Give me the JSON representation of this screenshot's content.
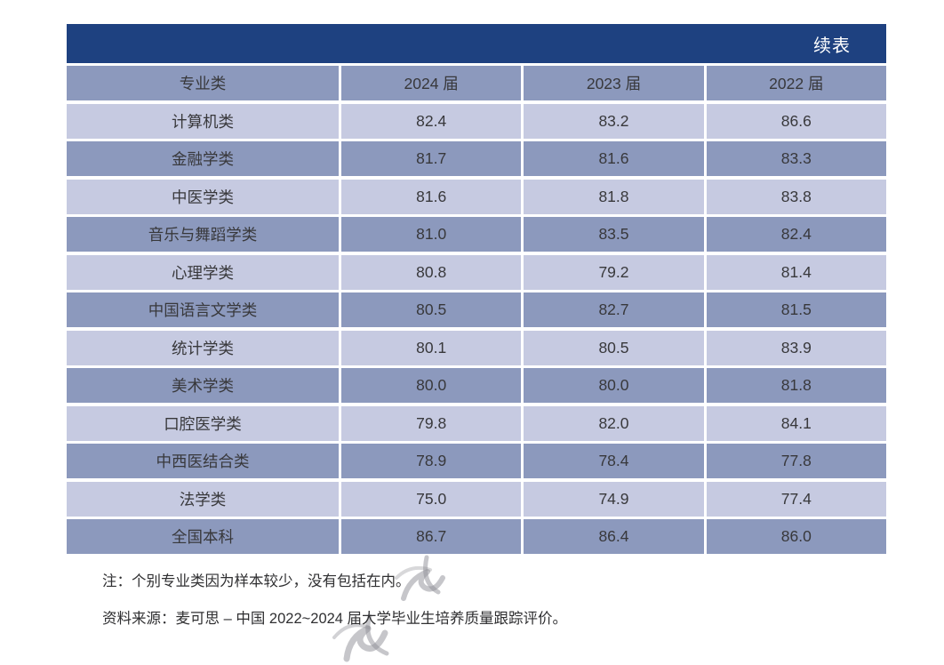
{
  "colors": {
    "navy": "#1e4180",
    "medium": "#8c99bd",
    "light": "#c6cae1"
  },
  "table": {
    "continued_label": "续表",
    "columns": [
      "专业类",
      "2024 届",
      "2023 届",
      "2022 届"
    ],
    "rows": [
      {
        "label": "计算机类",
        "values": [
          "82.4",
          "83.2",
          "86.6"
        ]
      },
      {
        "label": "金融学类",
        "values": [
          "81.7",
          "81.6",
          "83.3"
        ]
      },
      {
        "label": "中医学类",
        "values": [
          "81.6",
          "81.8",
          "83.8"
        ]
      },
      {
        "label": "音乐与舞蹈学类",
        "values": [
          "81.0",
          "83.5",
          "82.4"
        ]
      },
      {
        "label": "心理学类",
        "values": [
          "80.8",
          "79.2",
          "81.4"
        ]
      },
      {
        "label": "中国语言文学类",
        "values": [
          "80.5",
          "82.7",
          "81.5"
        ]
      },
      {
        "label": "统计学类",
        "values": [
          "80.1",
          "80.5",
          "83.9"
        ]
      },
      {
        "label": "美术学类",
        "values": [
          "80.0",
          "80.0",
          "81.8"
        ]
      },
      {
        "label": "口腔医学类",
        "values": [
          "79.8",
          "82.0",
          "84.1"
        ]
      },
      {
        "label": "中西医结合类",
        "values": [
          "78.9",
          "78.4",
          "77.8"
        ]
      },
      {
        "label": "法学类",
        "values": [
          "75.0",
          "74.9",
          "77.4"
        ]
      },
      {
        "label": "全国本科",
        "values": [
          "86.7",
          "86.4",
          "86.0"
        ]
      }
    ]
  },
  "notes": {
    "note": "注：个别专业类因为样本较少，没有包括在内。",
    "source": "资料来源：麦可思 – 中国 2022~2024 届大学毕业生培养质量跟踪评价。"
  }
}
